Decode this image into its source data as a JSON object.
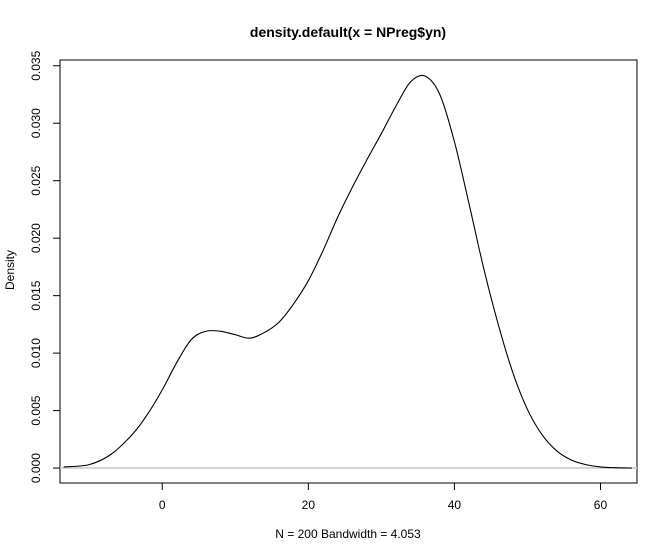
{
  "chart_data": {
    "type": "line",
    "title": "density.default(x = NPreg$yn)",
    "xlabel": "N = 200   Bandwidth = 4.053",
    "ylabel": "Density",
    "xlim": [
      -14,
      65
    ],
    "ylim": [
      -0.0013,
      0.0355
    ],
    "x_ticks": [
      0,
      20,
      40,
      60
    ],
    "y_ticks": [
      0.0,
      0.005,
      0.01,
      0.015,
      0.02,
      0.025,
      0.03,
      0.035
    ],
    "x_tick_labels": [
      "0",
      "20",
      "40",
      "60"
    ],
    "y_tick_labels": [
      "0.000",
      "0.005",
      "0.010",
      "0.015",
      "0.020",
      "0.025",
      "0.030",
      "0.035"
    ],
    "baseline": 0,
    "baseline_color": "#c8c8c8",
    "line_color": "#000000",
    "grid": false,
    "series": [
      {
        "x": [
          -13.5,
          -10,
          -7,
          -4,
          -2,
          0,
          2,
          4,
          6,
          8,
          10,
          12,
          14,
          16,
          18,
          20,
          22,
          24,
          26,
          28,
          30,
          32,
          34,
          36,
          38,
          40,
          42,
          44,
          46,
          48,
          50,
          52,
          54,
          56,
          58,
          60,
          62,
          64.3
        ],
        "y": [
          0.0001,
          0.0003,
          0.0012,
          0.003,
          0.0047,
          0.0068,
          0.0092,
          0.0112,
          0.0119,
          0.0119,
          0.0116,
          0.0113,
          0.0118,
          0.0127,
          0.0143,
          0.0163,
          0.0189,
          0.0218,
          0.0244,
          0.0268,
          0.0291,
          0.0315,
          0.0336,
          0.0341,
          0.0325,
          0.0284,
          0.023,
          0.0174,
          0.0125,
          0.0083,
          0.0051,
          0.0029,
          0.0015,
          0.0007,
          0.0003,
          0.0001,
          3e-05,
          0.0
        ]
      }
    ]
  }
}
